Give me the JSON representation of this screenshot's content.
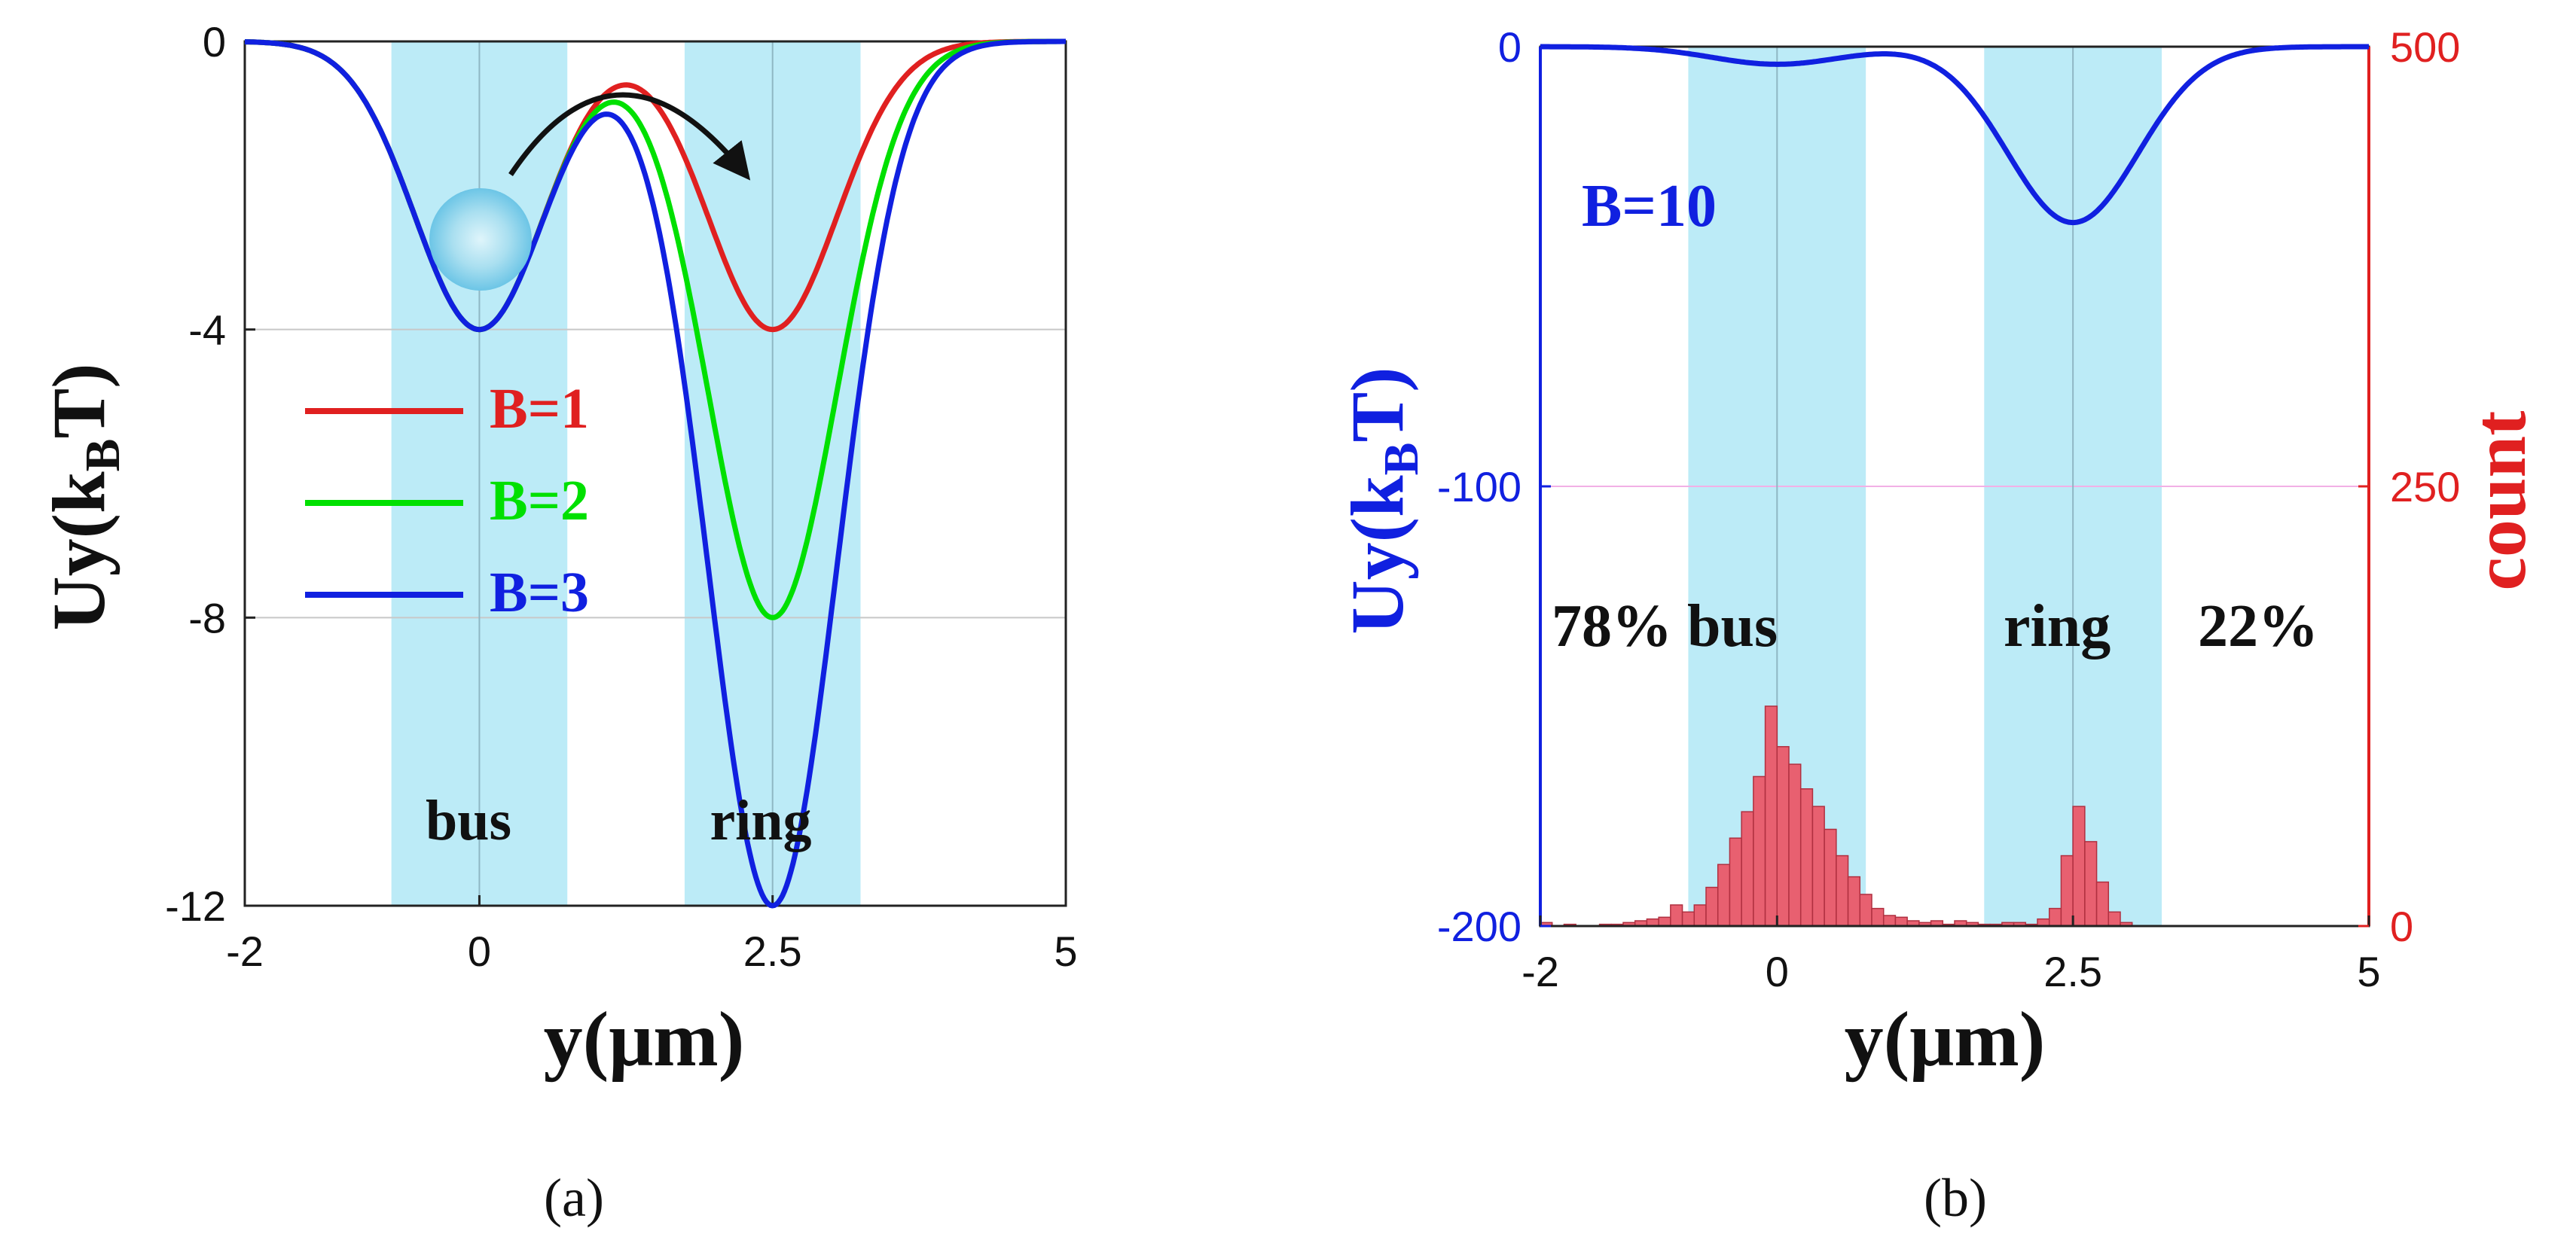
{
  "chart_data": [
    {
      "type": "line",
      "panel": "a",
      "panel_label": "(a)",
      "xlabel": "y(μm)",
      "ylabel": "Uy(k",
      "ylabel_sub": "B",
      "ylabel_tail": "T)",
      "xlim": [
        -2,
        5
      ],
      "ylim": [
        -12,
        0
      ],
      "xticks": [
        -2,
        0,
        2.5,
        5
      ],
      "yticks": [
        -12,
        -8,
        -4,
        0
      ],
      "xtick_labels": [
        "-2",
        "0",
        "2.5",
        "5"
      ],
      "ytick_labels": [
        "-12",
        "-8",
        "-4",
        "0"
      ],
      "grid": true,
      "legend": "left-middle",
      "regions": [
        {
          "label": "bus",
          "x0": -0.75,
          "x1": 0.75,
          "center": 0
        },
        {
          "label": "ring",
          "x0": 1.75,
          "x1": 3.25,
          "center": 2.5
        }
      ],
      "series": [
        {
          "name": "B=1",
          "color": "#e02020",
          "bus_center": 0,
          "bus_depth": 4,
          "ring_center": 2.5,
          "ring_depth": 4
        },
        {
          "name": "B=2",
          "color": "#00e000",
          "bus_center": 0,
          "bus_depth": 4,
          "ring_center": 2.5,
          "ring_depth": 8
        },
        {
          "name": "B=3",
          "color": "#1020e0",
          "bus_center": 0,
          "bus_depth": 4,
          "ring_center": 2.5,
          "ring_depth": 12
        }
      ]
    },
    {
      "type": "line+histogram",
      "panel": "b",
      "panel_label": "(b)",
      "xlabel": "y(μm)",
      "ylabel_left": "Uy(k",
      "ylabel_left_sub": "B",
      "ylabel_left_tail": "T)",
      "ylabel_right": "count",
      "xlim": [
        -2,
        5
      ],
      "ylim_left": [
        -200,
        0
      ],
      "ylim_right": [
        0,
        500
      ],
      "xticks": [
        -2,
        0,
        2.5,
        5
      ],
      "xtick_labels": [
        "-2",
        "0",
        "2.5",
        "5"
      ],
      "yticks_left": [
        -200,
        -100,
        0
      ],
      "ytick_labels_left": [
        "-200",
        "-100",
        "0"
      ],
      "yticks_right": [
        0,
        250,
        500
      ],
      "ytick_labels_right": [
        "0",
        "250",
        "500"
      ],
      "grid": true,
      "regions": [
        {
          "label": "bus",
          "x0": -0.75,
          "x1": 0.75,
          "center": 0
        },
        {
          "label": "ring",
          "x0": 1.75,
          "x1": 3.25,
          "center": 2.5
        }
      ],
      "series": [
        {
          "name": "B=10",
          "color": "#1020e0",
          "bus_center": 0,
          "bus_depth": 4,
          "ring_center": 2.5,
          "ring_depth": 40
        }
      ],
      "histogram": {
        "color": "#e86070",
        "bin_width": 0.1,
        "bin_starts": [
          -2.0,
          -1.9,
          -1.8,
          -1.7,
          -1.6,
          -1.5,
          -1.4,
          -1.3,
          -1.2,
          -1.1,
          -1.0,
          -0.9,
          -0.8,
          -0.7,
          -0.6,
          -0.5,
          -0.4,
          -0.3,
          -0.2,
          -0.1,
          0.0,
          0.1,
          0.2,
          0.3,
          0.4,
          0.5,
          0.6,
          0.7,
          0.8,
          0.9,
          1.0,
          1.1,
          1.2,
          1.3,
          1.4,
          1.5,
          1.6,
          1.7,
          1.8,
          1.9,
          2.0,
          2.1,
          2.2,
          2.3,
          2.4,
          2.5,
          2.6,
          2.7,
          2.8,
          2.9
        ],
        "counts": [
          2,
          0,
          1,
          0,
          0,
          1,
          1,
          2,
          3,
          4,
          5,
          12,
          8,
          12,
          22,
          35,
          50,
          65,
          85,
          125,
          102,
          92,
          78,
          68,
          55,
          40,
          28,
          18,
          10,
          6,
          5,
          3,
          2,
          3,
          1,
          3,
          2,
          1,
          1,
          2,
          2,
          1,
          4,
          10,
          40,
          68,
          48,
          25,
          8,
          2
        ]
      },
      "annotations": [
        {
          "text": "B=10",
          "color": "#1020e0"
        },
        {
          "text": "78% bus",
          "color": "#000000"
        },
        {
          "text": "ring",
          "color": "#000000"
        },
        {
          "text": "22%",
          "color": "#000000"
        }
      ]
    }
  ]
}
